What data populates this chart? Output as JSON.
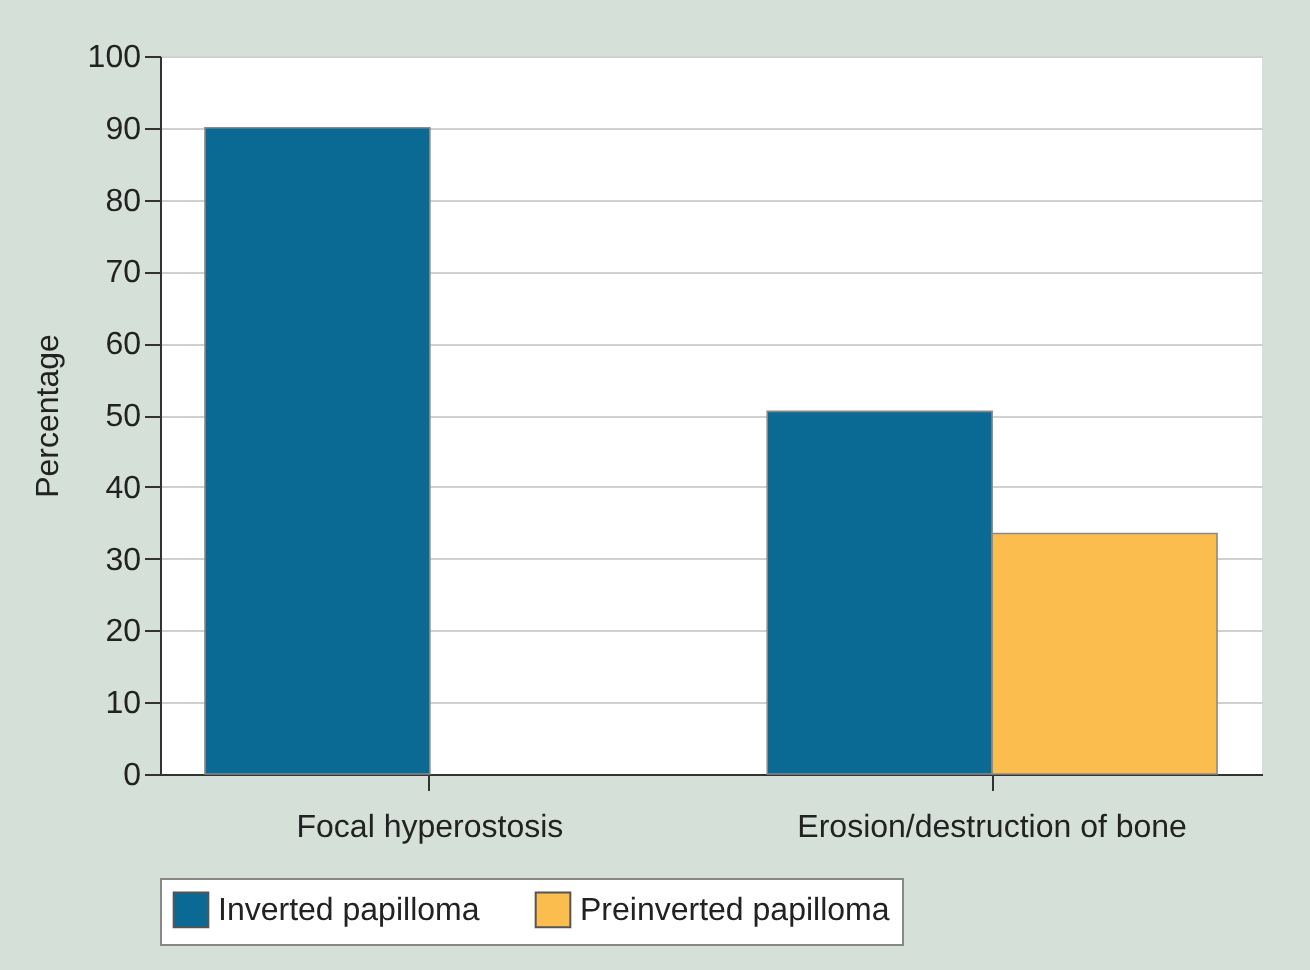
{
  "chart_data": {
    "type": "bar",
    "ylabel": "Percentage",
    "categories": [
      "Focal hyperostosis",
      "Erosion/destruction of bone"
    ],
    "series": [
      {
        "name": "Inverted papilloma",
        "color": "#0a6a93",
        "values": [
          90,
          50.5
        ]
      },
      {
        "name": "Preinverted papilloma",
        "color": "#fbbd4d",
        "values": [
          null,
          33.5
        ]
      }
    ],
    "ylim": [
      0,
      100
    ],
    "yticks": [
      0,
      10,
      20,
      30,
      40,
      50,
      60,
      70,
      80,
      90,
      100
    ],
    "grid": "y",
    "legend": "bottom"
  }
}
